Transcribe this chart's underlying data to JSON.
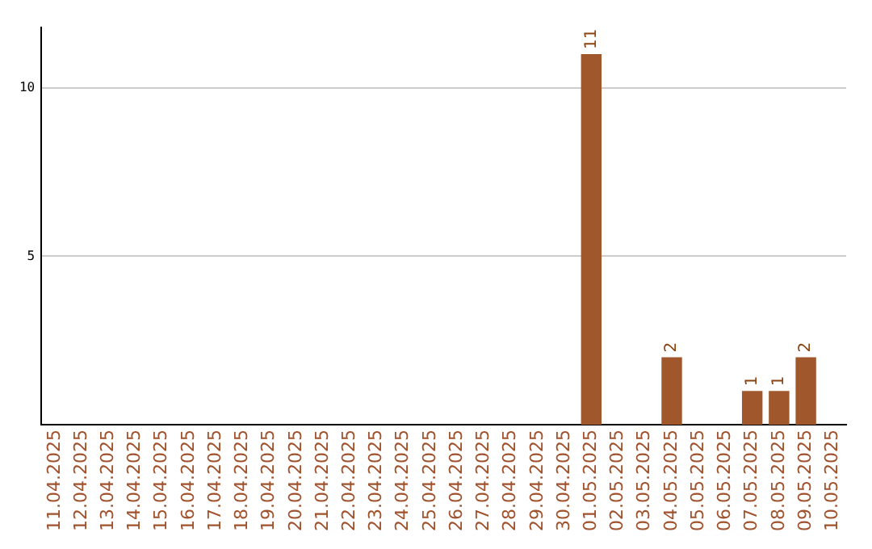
{
  "chart_data": {
    "type": "bar",
    "categories": [
      "11.04.2025",
      "12.04.2025",
      "13.04.2025",
      "14.04.2025",
      "15.04.2025",
      "16.04.2025",
      "17.04.2025",
      "18.04.2025",
      "19.04.2025",
      "20.04.2025",
      "21.04.2025",
      "22.04.2025",
      "23.04.2025",
      "24.04.2025",
      "25.04.2025",
      "26.04.2025",
      "27.04.2025",
      "28.04.2025",
      "29.04.2025",
      "30.04.2025",
      "01.05.2025",
      "02.05.2025",
      "03.05.2025",
      "04.05.2025",
      "05.05.2025",
      "06.05.2025",
      "07.05.2025",
      "08.05.2025",
      "09.05.2025",
      "10.05.2025"
    ],
    "values": [
      0,
      0,
      0,
      0,
      0,
      0,
      0,
      0,
      0,
      0,
      0,
      0,
      0,
      0,
      0,
      0,
      0,
      0,
      0,
      0,
      11,
      0,
      0,
      2,
      0,
      0,
      1,
      1,
      2,
      0
    ],
    "value_labels": [
      null,
      null,
      null,
      null,
      null,
      null,
      null,
      null,
      null,
      null,
      null,
      null,
      null,
      null,
      null,
      null,
      null,
      null,
      null,
      null,
      "11",
      null,
      null,
      "2",
      null,
      null,
      "1",
      "1",
      "2",
      null
    ],
    "color": "#a0572b",
    "ylim": [
      0,
      11.8
    ],
    "yticks": [
      5,
      10
    ],
    "grid": "y",
    "legend": false
  }
}
